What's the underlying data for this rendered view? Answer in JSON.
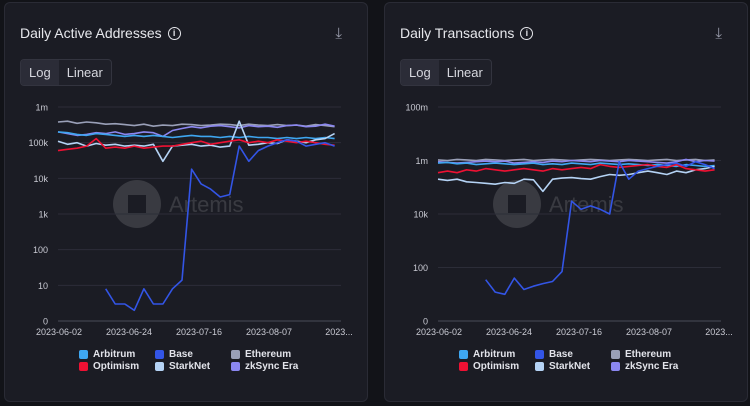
{
  "chart_data": [
    {
      "type": "line",
      "title": "Daily Active Addresses",
      "toggle": {
        "options": [
          "Log",
          "Linear"
        ],
        "selected": "Log"
      },
      "y_scale": "log",
      "y_ticks": [
        {
          "v": 1,
          "label": "0"
        },
        {
          "v": 10,
          "label": "10"
        },
        {
          "v": 100,
          "label": "100"
        },
        {
          "v": 1000,
          "label": "1k"
        },
        {
          "v": 10000,
          "label": "10k"
        },
        {
          "v": 100000,
          "label": "100k"
        },
        {
          "v": 1000000,
          "label": "1m"
        }
      ],
      "ylim": [
        1,
        1000000
      ],
      "x_ticks": [
        "2023-06-02",
        "2023-06-24",
        "2023-07-16",
        "2023-08-07",
        "2023..."
      ],
      "xlim": [
        "2023-06-02",
        "2023-08-30"
      ],
      "grid": true,
      "legend": "bottom",
      "x": [
        "2023-06-02",
        "2023-06-05",
        "2023-06-08",
        "2023-06-11",
        "2023-06-14",
        "2023-06-17",
        "2023-06-20",
        "2023-06-23",
        "2023-06-26",
        "2023-06-29",
        "2023-07-02",
        "2023-07-05",
        "2023-07-08",
        "2023-07-11",
        "2023-07-14",
        "2023-07-17",
        "2023-07-20",
        "2023-07-23",
        "2023-07-26",
        "2023-07-29",
        "2023-08-01",
        "2023-08-04",
        "2023-08-07",
        "2023-08-10",
        "2023-08-13",
        "2023-08-16",
        "2023-08-19",
        "2023-08-22",
        "2023-08-25",
        "2023-08-28"
      ],
      "series": [
        {
          "name": "Ethereum",
          "color": "#9aa0b8",
          "values": [
            380000,
            400000,
            350000,
            380000,
            360000,
            330000,
            340000,
            320000,
            300000,
            330000,
            290000,
            310000,
            300000,
            330000,
            320000,
            300000,
            310000,
            330000,
            320000,
            300000,
            330000,
            310000,
            300000,
            320000,
            300000,
            310000,
            290000,
            320000,
            300000,
            280000
          ]
        },
        {
          "name": "zkSync Era",
          "color": "#8b87f0",
          "values": [
            200000,
            180000,
            160000,
            170000,
            190000,
            180000,
            200000,
            170000,
            180000,
            200000,
            190000,
            150000,
            220000,
            250000,
            280000,
            260000,
            290000,
            300000,
            280000,
            260000,
            300000,
            280000,
            290000,
            270000,
            300000,
            310000,
            280000,
            290000,
            330000,
            290000
          ]
        },
        {
          "name": "Arbitrum",
          "color": "#3ea6f0",
          "values": [
            200000,
            190000,
            170000,
            160000,
            180000,
            170000,
            160000,
            150000,
            160000,
            150000,
            160000,
            150000,
            140000,
            150000,
            160000,
            150000,
            150000,
            140000,
            150000,
            140000,
            150000,
            140000,
            140000,
            130000,
            140000,
            130000,
            140000,
            130000,
            140000,
            130000
          ]
        },
        {
          "name": "StarkNet",
          "color": "#b5d3f5",
          "values": [
            110000,
            90000,
            100000,
            80000,
            95000,
            85000,
            90000,
            80000,
            85000,
            80000,
            90000,
            30000,
            80000,
            85000,
            90000,
            80000,
            85000,
            75000,
            80000,
            400000,
            85000,
            90000,
            100000,
            95000,
            120000,
            110000,
            100000,
            120000,
            130000,
            180000
          ]
        },
        {
          "name": "Optimism",
          "color": "#ee1133",
          "values": [
            60000,
            65000,
            70000,
            80000,
            130000,
            70000,
            75000,
            70000,
            80000,
            70000,
            75000,
            80000,
            80000,
            90000,
            100000,
            110000,
            90000,
            100000,
            110000,
            120000,
            100000,
            110000,
            100000,
            120000,
            110000,
            100000,
            110000,
            100000,
            90000,
            85000
          ]
        },
        {
          "name": "Base",
          "color": "#3355e6",
          "values": [
            null,
            null,
            null,
            null,
            null,
            8,
            3,
            3,
            2,
            8,
            3,
            3,
            8,
            14,
            18000,
            7000,
            5000,
            3000,
            3500,
            80000,
            30000,
            60000,
            80000,
            100000,
            120000,
            110000,
            80000,
            90000,
            100000,
            80000
          ]
        }
      ]
    },
    {
      "type": "line",
      "title": "Daily Transactions",
      "toggle": {
        "options": [
          "Log",
          "Linear"
        ],
        "selected": "Log"
      },
      "y_scale": "log",
      "y_ticks": [
        {
          "v": 1,
          "label": "0"
        },
        {
          "v": 100,
          "label": "100"
        },
        {
          "v": 10000,
          "label": "10k"
        },
        {
          "v": 1000000,
          "label": "1m"
        },
        {
          "v": 100000000,
          "label": "100m"
        }
      ],
      "ylim": [
        1,
        100000000
      ],
      "x_ticks": [
        "2023-06-02",
        "2023-06-24",
        "2023-07-16",
        "2023-08-07",
        "2023..."
      ],
      "xlim": [
        "2023-06-02",
        "2023-08-30"
      ],
      "grid": true,
      "legend": "bottom",
      "x": [
        "2023-06-02",
        "2023-06-05",
        "2023-06-08",
        "2023-06-11",
        "2023-06-14",
        "2023-06-17",
        "2023-06-20",
        "2023-06-23",
        "2023-06-26",
        "2023-06-29",
        "2023-07-02",
        "2023-07-05",
        "2023-07-08",
        "2023-07-11",
        "2023-07-14",
        "2023-07-17",
        "2023-07-20",
        "2023-07-23",
        "2023-07-26",
        "2023-07-29",
        "2023-08-01",
        "2023-08-04",
        "2023-08-07",
        "2023-08-10",
        "2023-08-13",
        "2023-08-16",
        "2023-08-19",
        "2023-08-22",
        "2023-08-25",
        "2023-08-28"
      ],
      "series": [
        {
          "name": "Ethereum",
          "color": "#9aa0b8",
          "values": [
            1050000,
            1000000,
            1100000,
            1050000,
            1000000,
            1100000,
            1050000,
            1000000,
            1050000,
            1100000,
            1000000,
            1050000,
            1100000,
            1050000,
            1000000,
            1050000,
            1100000,
            1050000,
            1000000,
            1050000,
            1100000,
            1050000,
            1000000,
            1050000,
            1100000,
            1000000,
            1050000,
            1100000,
            1000000,
            1050000
          ]
        },
        {
          "name": "zkSync Era",
          "color": "#8b87f0",
          "values": [
            900000,
            850000,
            800000,
            850000,
            900000,
            950000,
            900000,
            950000,
            800000,
            850000,
            900000,
            850000,
            950000,
            900000,
            1000000,
            950000,
            900000,
            1000000,
            950000,
            900000,
            1000000,
            950000,
            900000,
            850000,
            800000,
            900000,
            1100000,
            900000,
            1000000,
            950000
          ]
        },
        {
          "name": "Arbitrum",
          "color": "#3ea6f0",
          "values": [
            800000,
            850000,
            750000,
            800000,
            700000,
            750000,
            800000,
            750000,
            700000,
            750000,
            800000,
            700000,
            750000,
            700000,
            800000,
            750000,
            700000,
            800000,
            750000,
            700000,
            750000,
            700000,
            650000,
            700000,
            650000,
            600000,
            700000,
            650000,
            600000,
            650000
          ]
        },
        {
          "name": "StarkNet",
          "color": "#b5d3f5",
          "values": [
            200000,
            180000,
            200000,
            160000,
            150000,
            140000,
            130000,
            150000,
            140000,
            200000,
            190000,
            70000,
            200000,
            220000,
            230000,
            210000,
            200000,
            250000,
            300000,
            280000,
            300000,
            350000,
            400000,
            350000,
            300000,
            400000,
            350000,
            450000,
            500000,
            600000
          ]
        },
        {
          "name": "Optimism",
          "color": "#ee1133",
          "values": [
            350000,
            400000,
            350000,
            450000,
            400000,
            500000,
            450000,
            400000,
            450000,
            500000,
            450000,
            400000,
            500000,
            450000,
            500000,
            550000,
            500000,
            700000,
            600000,
            550000,
            600000,
            650000,
            700000,
            600000,
            550000,
            700000,
            500000,
            450000,
            400000,
            450000
          ]
        },
        {
          "name": "Base",
          "color": "#3355e6",
          "values": [
            null,
            null,
            null,
            null,
            null,
            35,
            12,
            10,
            40,
            15,
            20,
            25,
            30,
            70,
            30000,
            15000,
            20000,
            15000,
            10000,
            900000,
            200000,
            400000,
            500000,
            600000,
            700000,
            800000,
            600000,
            900000,
            700000,
            500000
          ]
        }
      ]
    }
  ],
  "legend_order": [
    "Arbitrum",
    "Base",
    "Ethereum",
    "Optimism",
    "StarkNet",
    "zkSync Era"
  ],
  "watermark": "Artemis",
  "icons": {
    "info": "info-circle-icon",
    "download": "download-icon"
  }
}
